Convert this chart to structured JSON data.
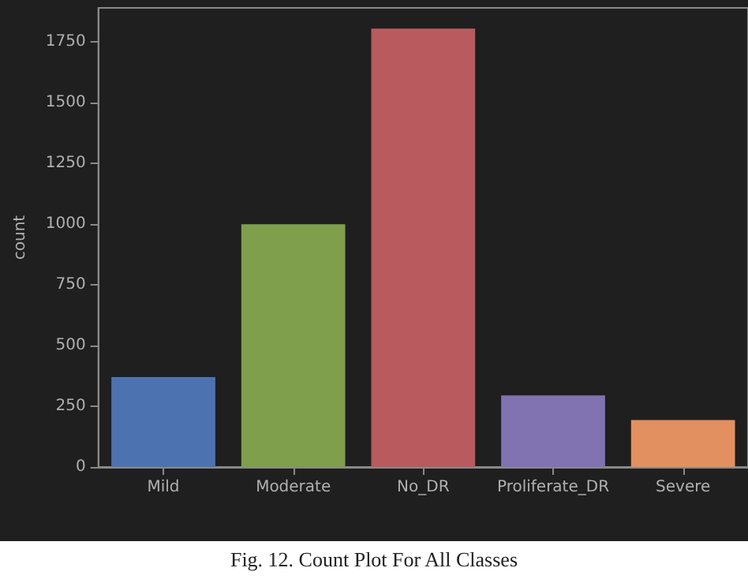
{
  "chart_data": {
    "type": "bar",
    "ylabel": "count",
    "categories": [
      "Mild",
      "Moderate",
      "No_DR",
      "Proliferate_DR",
      "Severe"
    ],
    "values": [
      370,
      999,
      1805,
      295,
      193
    ],
    "colors": [
      "#4c72b0",
      "#7f9f4c",
      "#b85a5e",
      "#8172b2",
      "#e39060"
    ],
    "ylim": [
      0,
      1890
    ],
    "yticks": [
      0,
      250,
      500,
      750,
      1000,
      1250,
      1500,
      1750
    ],
    "grid": false,
    "annotations": [
      "Fig. 12. Count Plot For All Classes"
    ]
  }
}
